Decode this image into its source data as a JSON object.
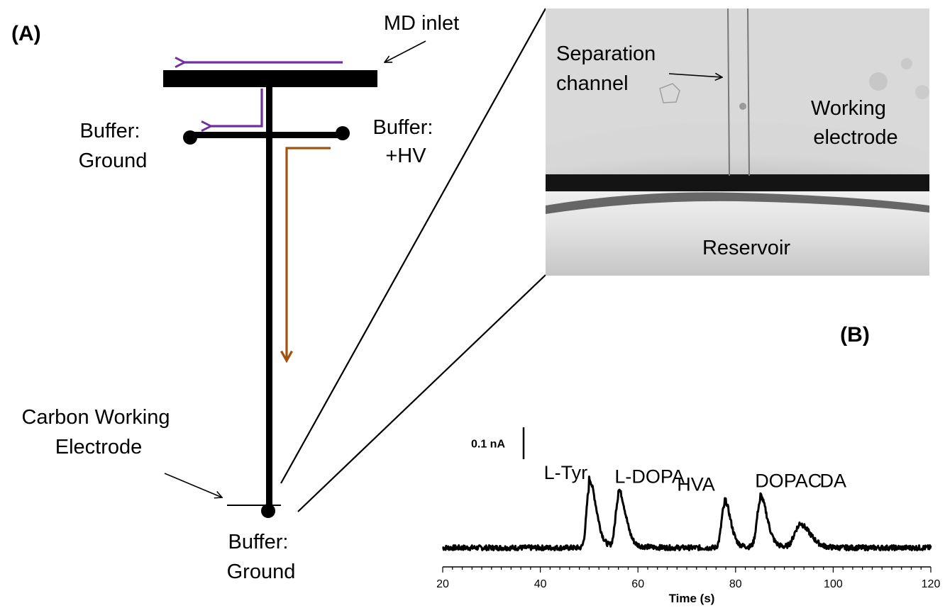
{
  "panel_a": {
    "label": "(A)",
    "md_inlet": "MD inlet",
    "buffer_ground_left": [
      "Buffer:",
      "Ground"
    ],
    "buffer_hv": [
      "Buffer:",
      "+HV"
    ],
    "carbon_electrode": [
      "Carbon Working",
      "Electrode"
    ],
    "buffer_ground_bottom": [
      "Buffer:",
      "Ground"
    ],
    "colors": {
      "injection_flow": "#7030a0",
      "separation_flow": "#a0520f"
    }
  },
  "micrograph": {
    "separation_channel": [
      "Separation",
      "channel"
    ],
    "working_electrode": [
      "Working",
      "electrode"
    ],
    "reservoir": "Reservoir"
  },
  "panel_b": {
    "label": "(B)",
    "scale_bar": "0.1 nA"
  },
  "chart_data": {
    "type": "line",
    "xlabel": "Time (s)",
    "ylabel": "",
    "xlim": [
      20,
      120
    ],
    "xticks": [
      20,
      40,
      60,
      80,
      100,
      120
    ],
    "scale_bar_nA": 0.1,
    "baseline_nA": 0.0,
    "peaks": [
      {
        "name": "L-Tyr",
        "time_s": 50.0,
        "height_nA": 0.184
      },
      {
        "name": "L-DOPA",
        "time_s": 56.0,
        "height_nA": 0.155
      },
      {
        "name": "HVA",
        "time_s": 77.7,
        "height_nA": 0.13
      },
      {
        "name": "DOPAC",
        "time_s": 85.0,
        "height_nA": 0.141
      },
      {
        "name": "DA",
        "time_s": 93.0,
        "height_nA": 0.066
      }
    ]
  }
}
